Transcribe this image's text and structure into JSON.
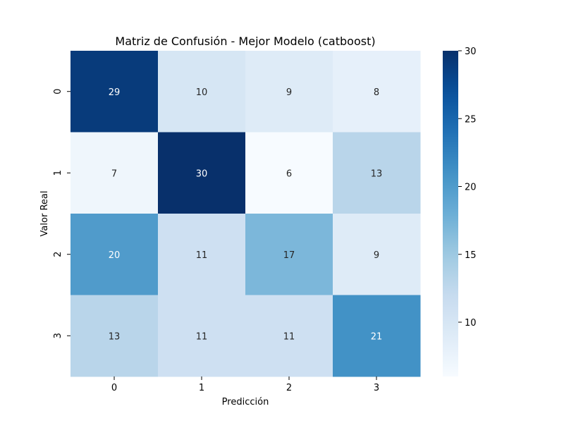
{
  "chart_data": {
    "type": "heatmap",
    "title": "Matriz de Confusión - Mejor Modelo (catboost)",
    "xlabel": "Predicción",
    "ylabel": "Valor Real",
    "x_categories": [
      "0",
      "1",
      "2",
      "3"
    ],
    "y_categories": [
      "0",
      "1",
      "2",
      "3"
    ],
    "matrix": [
      [
        29,
        10,
        9,
        8
      ],
      [
        7,
        30,
        6,
        13
      ],
      [
        20,
        11,
        17,
        9
      ],
      [
        13,
        11,
        11,
        21
      ]
    ],
    "colorbar": {
      "vmin": 6,
      "vmax": 30,
      "ticks": [
        10,
        15,
        20,
        25,
        30
      ],
      "colormap": "Blues"
    }
  }
}
